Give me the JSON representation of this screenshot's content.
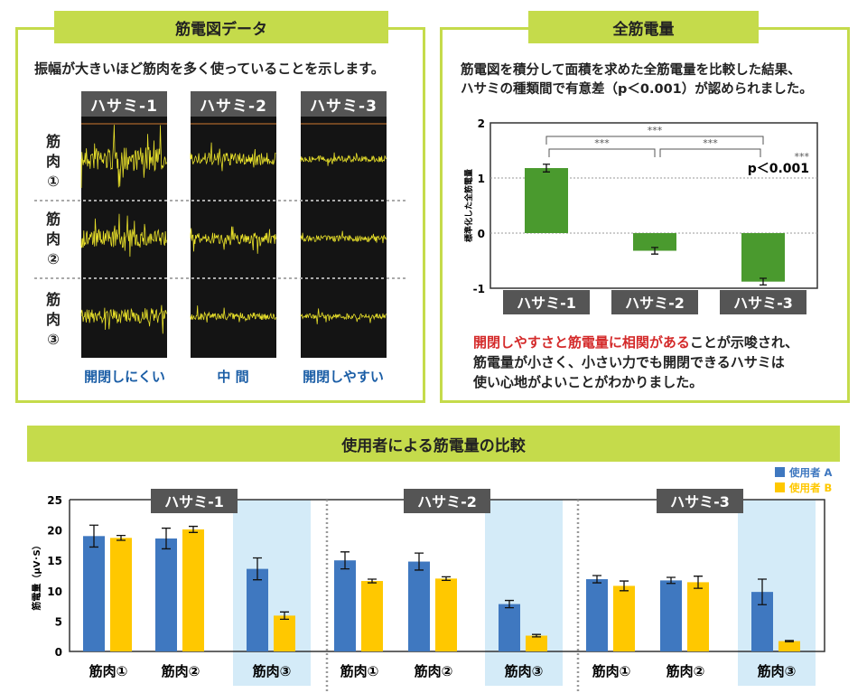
{
  "left_panel": {
    "title": "筋電図データ",
    "description": "振幅が大きいほど筋肉を多く使っていることを示します。",
    "columns": [
      "ハサミ-1",
      "ハサミ-2",
      "ハサミ-3"
    ],
    "rows": [
      "筋\n肉\n①",
      "筋\n肉\n②",
      "筋\n肉\n③"
    ],
    "column_captions": [
      "開閉しにくい",
      "中 間",
      "開閉しやすい"
    ],
    "wave_color": "#e8e02a"
  },
  "right_panel": {
    "title": "全筋電量",
    "description_line1": "筋電図を積分して面積を求めた全筋電量を比較した結果、",
    "description_line2": "ハサミの種類間で有意差（p＜0.001）が認められました。",
    "conclusion_red": "開閉しやすさと筋電量に相関がある",
    "conclusion_rest1": "ことが示唆され、",
    "conclusion_line2": "筋電量が小さく、小さい力でも開閉できるハサミは",
    "conclusion_line3": "使い心地がよいことがわかりました。"
  },
  "bottom_title": "使用者による筋電量の比較",
  "chart_data": [
    {
      "type": "bar",
      "categories": [
        "ハサミ-1",
        "ハサミ-2",
        "ハサミ-3"
      ],
      "values": [
        1.18,
        -0.32,
        -0.88
      ],
      "errors": [
        0.07,
        0.06,
        0.06
      ],
      "ylabel": "標準化した全筋電量",
      "ylim": [
        -1,
        2
      ],
      "yticks": [
        "2",
        "1",
        "0",
        "-1"
      ],
      "grid": "dotted at 1 and 0",
      "significance": [
        {
          "pair": [
            "ハサミ-1",
            "ハサミ-3"
          ],
          "label": "***"
        },
        {
          "pair": [
            "ハサミ-1",
            "ハサミ-2"
          ],
          "label": "***"
        },
        {
          "pair": [
            "ハサミ-2",
            "ハサミ-3"
          ],
          "label": "***"
        }
      ],
      "annotation_stars": "***",
      "annotation_p": "p＜0.001",
      "color": "#4a9a2e"
    },
    {
      "type": "bar",
      "groups": [
        "ハサミ-1",
        "ハサミ-2",
        "ハサミ-3"
      ],
      "categories": [
        "筋肉①",
        "筋肉②",
        "筋肉③"
      ],
      "ylabel": "筋電量（μV･S）",
      "ylim": [
        0,
        25
      ],
      "yticks": [
        "0",
        "5",
        "10",
        "15",
        "20",
        "25"
      ],
      "legend_position": "top-right",
      "highlight_category": "筋肉③",
      "series": [
        {
          "name": "使用者 A",
          "color": "#3f78c0",
          "values": [
            [
              19.0,
              18.6,
              13.6
            ],
            [
              15.0,
              14.8,
              7.8
            ],
            [
              11.9,
              11.7,
              9.8
            ]
          ],
          "errors": [
            [
              1.8,
              1.7,
              1.8
            ],
            [
              1.4,
              1.4,
              0.6
            ],
            [
              0.6,
              0.5,
              2.1
            ]
          ]
        },
        {
          "name": "使用者 B",
          "color": "#ffc800",
          "values": [
            [
              18.7,
              20.1,
              5.9
            ],
            [
              11.6,
              12.0,
              2.6
            ],
            [
              10.8,
              11.4,
              1.7
            ]
          ],
          "errors": [
            [
              0.4,
              0.5,
              0.6
            ],
            [
              0.3,
              0.3,
              0.2
            ],
            [
              0.8,
              1.0,
              0.1
            ]
          ]
        }
      ]
    }
  ]
}
